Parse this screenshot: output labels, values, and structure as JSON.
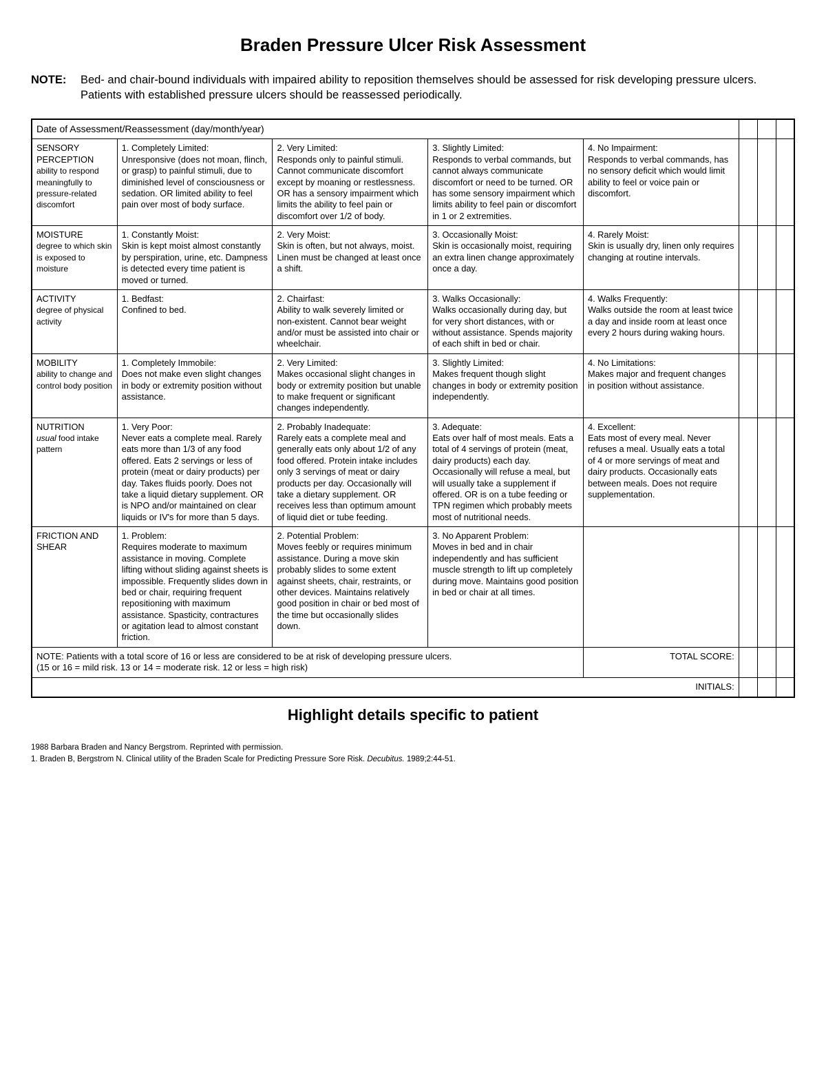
{
  "title": "Braden Pressure Ulcer Risk Assessment",
  "note_label": "NOTE:",
  "note_text_1": "Bed- and chair-bound individuals with impaired ability to reposition themselves should be assessed for risk developing pressure ulcers.",
  "note_text_2": "Patients with established pressure ulcers should be reassessed periodically.",
  "header_cell": "Date of Assessment/Reassessment (day/month/year)",
  "categories": [
    {
      "name": "SENSORY PERCEPTION",
      "sub": "ability to respond meaningfully to pressure-related discomfort",
      "scores": [
        {
          "title": "1. Completely Limited:",
          "desc": "Unresponsive (does not moan, flinch, or grasp) to painful stimuli, due to diminished level of consciousness or sedation. OR limited ability to feel pain over most of body surface."
        },
        {
          "title": "2. Very Limited:",
          "desc": "Responds only to painful stimuli. Cannot communicate discomfort except by moaning or restlessness. OR has a sensory impairment which limits the ability to feel pain or discomfort over 1/2 of body."
        },
        {
          "title": "3. Slightly Limited:",
          "desc": "Responds to verbal commands, but cannot always communicate discomfort or need to be turned. OR has some sensory impairment which limits ability to feel pain or discomfort in 1 or 2 extremities."
        },
        {
          "title": "4. No Impairment:",
          "desc": "Responds to verbal commands, has no sensory deficit which would limit ability to feel or voice pain or discomfort."
        }
      ]
    },
    {
      "name": "MOISTURE",
      "sub": "degree to which skin is exposed to moisture",
      "scores": [
        {
          "title": "1. Constantly Moist:",
          "desc": "Skin is kept moist almost constantly by perspiration, urine, etc. Dampness is detected every time patient is moved or turned."
        },
        {
          "title": "2. Very Moist:",
          "desc": "Skin is often, but not always, moist. Linen must be changed at least once a shift."
        },
        {
          "title": "3. Occasionally Moist:",
          "desc": "Skin is occasionally moist, requiring an extra linen change approximately once a day."
        },
        {
          "title": "4. Rarely Moist:",
          "desc": "Skin is usually dry, linen only requires changing at routine intervals."
        }
      ]
    },
    {
      "name": "ACTIVITY",
      "sub": "degree of physical activity",
      "scores": [
        {
          "title": "1. Bedfast:",
          "desc": "Confined to bed."
        },
        {
          "title": "2. Chairfast:",
          "desc": "Ability to walk severely limited or non-existent. Cannot bear weight and/or must be assisted into chair or wheelchair."
        },
        {
          "title": "3. Walks Occasionally:",
          "desc": "Walks occasionally during day, but for very short distances, with or without assistance. Spends majority of each shift in bed or chair."
        },
        {
          "title": "4. Walks Frequently:",
          "desc": "Walks outside the room at least twice a day and inside room at least once every 2 hours during waking hours."
        }
      ]
    },
    {
      "name": "MOBILITY",
      "sub": "ability to change and control body position",
      "scores": [
        {
          "title": "1. Completely Immobile:",
          "desc": "Does not make even slight changes in body or extremity position without assistance."
        },
        {
          "title": "2. Very Limited:",
          "desc": "Makes occasional slight changes in body or extremity position but unable to make frequent or significant changes independently."
        },
        {
          "title": "3. Slightly Limited:",
          "desc": "Makes frequent though slight changes in body or extremity position independently."
        },
        {
          "title": "4. No Limitations:",
          "desc": "Makes major and frequent changes in position without assistance."
        }
      ]
    },
    {
      "name": "NUTRITION",
      "sub": "usual food intake pattern",
      "sub_italic": "usual",
      "sub_rest": " food intake pattern",
      "scores": [
        {
          "title": "1. Very Poor:",
          "desc": "Never eats a complete meal. Rarely eats more than 1/3 of any food offered. Eats 2 servings or less of protein (meat or dairy products) per day. Takes fluids poorly. Does not take a liquid dietary supplement. OR is NPO and/or maintained on clear liquids or IV's for more than 5 days."
        },
        {
          "title": "2. Probably Inadequate:",
          "desc": "Rarely eats a complete meal and generally eats only about 1/2 of any food offered. Protein intake includes only 3 servings of meat or dairy products per day. Occasionally will take a dietary supplement. OR receives less than optimum amount of liquid diet or tube feeding."
        },
        {
          "title": "3. Adequate:",
          "desc": "Eats over half of most meals. Eats a total of 4 servings of protein (meat, dairy products) each day. Occasionally will refuse a meal, but will usually take a supplement if offered. OR is on a tube feeding or TPN regimen which probably meets most of nutritional needs."
        },
        {
          "title": "4. Excellent:",
          "desc": "Eats most of every meal. Never refuses a meal. Usually eats a total of 4 or more servings of meat and dairy products. Occasionally eats between meals. Does not require supplementation."
        }
      ]
    },
    {
      "name": "FRICTION AND SHEAR",
      "sub": "",
      "scores": [
        {
          "title": "1. Problem:",
          "desc": "Requires moderate to maximum assistance in moving. Complete lifting without sliding against sheets is impossible. Frequently slides down in bed or chair, requiring frequent repositioning with maximum assistance. Spasticity, contractures or agitation lead to almost constant friction."
        },
        {
          "title": "2. Potential Problem:",
          "desc": "Moves feebly or requires minimum assistance. During a move skin probably slides to some extent against sheets, chair, restraints, or other devices. Maintains relatively good position in chair or bed most of the time but occasionally slides down."
        },
        {
          "title": "3. No Apparent Problem:",
          "desc": "Moves in bed and in chair independently and has sufficient muscle strength to lift up completely during move. Maintains good position in bed or chair at all times."
        },
        {
          "title": "",
          "desc": ""
        }
      ]
    }
  ],
  "footer_note_1": "NOTE: Patients with a total score of 16 or less are considered to be at risk of developing pressure ulcers.",
  "footer_note_2": "(15 or 16 = mild risk. 13 or 14 = moderate risk. 12 or less = high risk)",
  "total_label": "TOTAL SCORE:",
  "initials_label": "INITIALS:",
  "subtitle": "Highlight details specific to patient",
  "ref_1": "1988 Barbara Braden and Nancy Bergstrom. Reprinted with permission.",
  "ref_2a": "1. Braden B, Bergstrom N. Clinical utility of the Braden Scale for Predicting Pressure Sore Risk. ",
  "ref_2b": "Decubitus.",
  "ref_2c": " 1989;2:44-51."
}
